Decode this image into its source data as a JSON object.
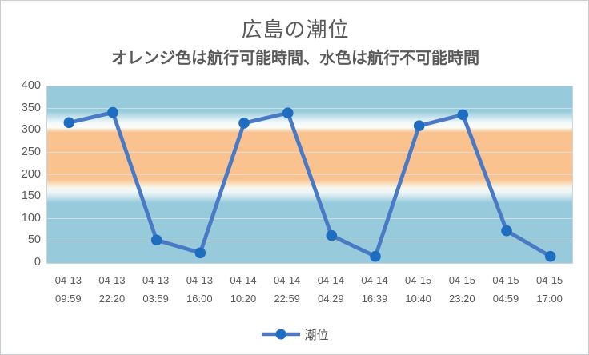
{
  "chart_data": {
    "type": "line",
    "title": "広島の潮位",
    "subtitle": "オレンジ色は航行可能時間、水色は航行不可能時間",
    "categories": [
      {
        "date": "04-13",
        "time": "09:59"
      },
      {
        "date": "04-13",
        "time": "22:20"
      },
      {
        "date": "04-13",
        "time": "03:59"
      },
      {
        "date": "04-13",
        "time": "16:00"
      },
      {
        "date": "04-14",
        "time": "10:20"
      },
      {
        "date": "04-14",
        "time": "22:59"
      },
      {
        "date": "04-14",
        "time": "04:29"
      },
      {
        "date": "04-14",
        "time": "16:39"
      },
      {
        "date": "04-15",
        "time": "10:40"
      },
      {
        "date": "04-15",
        "time": "23:20"
      },
      {
        "date": "04-15",
        "time": "04:59"
      },
      {
        "date": "04-15",
        "time": "17:00"
      }
    ],
    "series": [
      {
        "name": "潮位",
        "values": [
          318,
          341,
          52,
          23,
          317,
          340,
          62,
          15,
          311,
          336,
          73,
          15
        ]
      }
    ],
    "ylim": [
      0,
      400
    ],
    "ytick_step": 50,
    "grid": "horizontal",
    "legend_position": "bottom",
    "bands": [
      {
        "color_name": "オレンジ色",
        "meaning": "航行可能時間",
        "hex": "#f9c28e",
        "value_range": [
          190,
          305
        ]
      },
      {
        "color_name": "水色",
        "meaning": "航行不可能時間",
        "hex": "#97cbdb",
        "value_ranges": [
          [
            0,
            160
          ],
          [
            335,
            400
          ]
        ]
      }
    ],
    "colors": {
      "line": "#4a79c6",
      "marker": "#1f6dc1",
      "band_orange": "#f9c28e",
      "band_blue": "#97cbdb",
      "gridline": "#d9dee0",
      "text": "#595959"
    }
  }
}
